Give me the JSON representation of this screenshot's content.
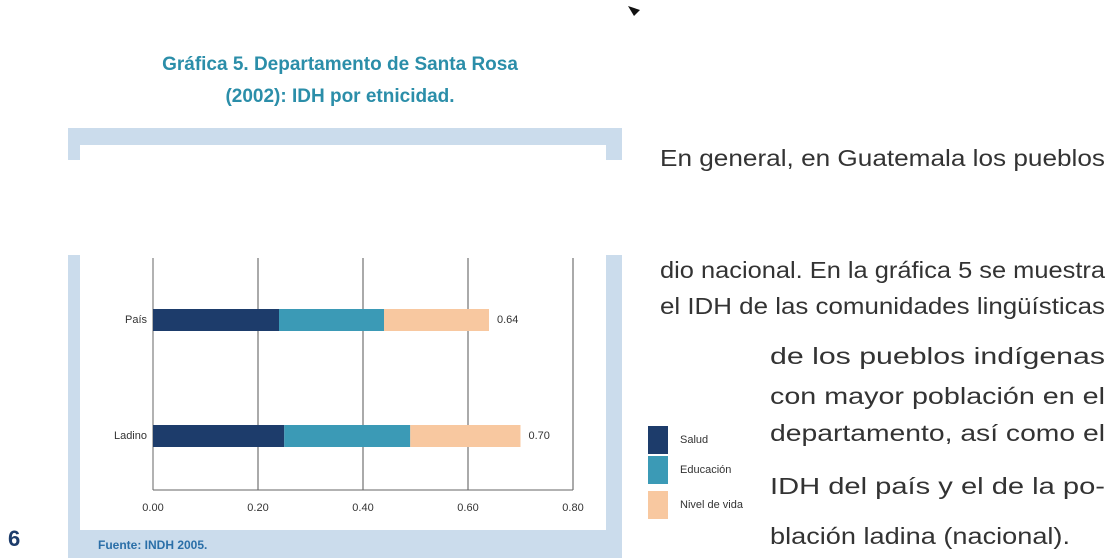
{
  "page_number": "6",
  "chart_data": {
    "type": "bar",
    "orientation": "horizontal",
    "stacked": true,
    "title": [
      "Gráfica 5. Departamento de Santa Rosa",
      "(2002): IDH por etnicidad."
    ],
    "source": "Fuente: INDH 2005.",
    "categories": [
      "País",
      "Ladino"
    ],
    "series": [
      {
        "name": "Salud",
        "color": "#1d3c6b",
        "values": [
          0.24,
          0.25
        ]
      },
      {
        "name": "Educación",
        "color": "#3b9ab6",
        "values": [
          0.2,
          0.24
        ]
      },
      {
        "name": "Nivel de vida",
        "color": "#f8c8a0",
        "values": [
          0.2,
          0.21
        ]
      }
    ],
    "total_labels": [
      "0.64",
      "0.70"
    ],
    "xlim": [
      0,
      0.8
    ],
    "xticks": [
      {
        "value": 0,
        "label": "0.00"
      },
      {
        "value": 0.2,
        "label": "0.20"
      },
      {
        "value": 0.4,
        "label": "0.40"
      },
      {
        "value": 0.6,
        "label": "0.60"
      },
      {
        "value": 0.8,
        "label": "0.80"
      }
    ],
    "grid": true
  },
  "body_lines": [
    "En general, en Guatemala los pueblos",
    "dio nacional. En la gráfica 5 se muestra",
    "el IDH de las comunidades lingüísticas",
    "de los pueblos indígenas",
    "con mayor población en el",
    "departamento, así como el",
    "IDH del país y el de la po-",
    "blación ladina (nacional)."
  ]
}
